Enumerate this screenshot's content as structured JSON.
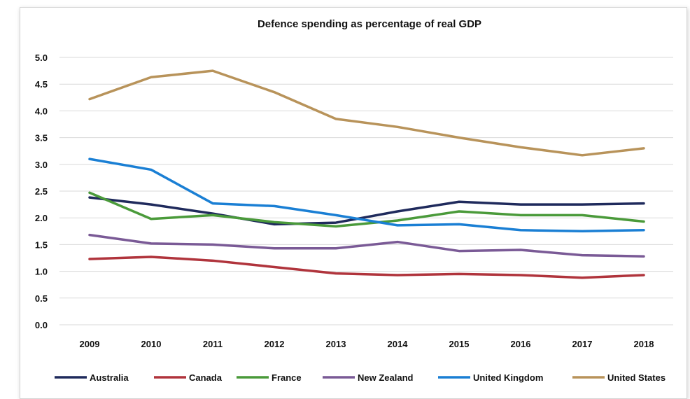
{
  "chart_data": {
    "type": "line",
    "title": "Defence spending as percentage of real GDP",
    "xlabel": "",
    "ylabel": "",
    "categories": [
      "2009",
      "2010",
      "2011",
      "2012",
      "2013",
      "2014",
      "2015",
      "2016",
      "2017",
      "2018"
    ],
    "y_ticks": [
      "0.0",
      "0.5",
      "1.0",
      "1.5",
      "2.0",
      "2.5",
      "3.0",
      "3.5",
      "4.0",
      "4.5",
      "5.0"
    ],
    "ylim": [
      0,
      5
    ],
    "grid": true,
    "legend_position": "bottom",
    "series": [
      {
        "name": "Australia",
        "color": "#1f2a5c",
        "values": [
          2.38,
          2.25,
          2.08,
          1.88,
          1.91,
          2.12,
          2.3,
          2.25,
          2.25,
          2.27
        ]
      },
      {
        "name": "Canada",
        "color": "#b0343c",
        "values": [
          1.23,
          1.27,
          1.2,
          1.08,
          0.96,
          0.93,
          0.95,
          0.93,
          0.88,
          0.93
        ]
      },
      {
        "name": "France",
        "color": "#4a9a3a",
        "values": [
          2.47,
          1.98,
          2.05,
          1.92,
          1.84,
          1.95,
          2.12,
          2.05,
          2.05,
          1.93
        ]
      },
      {
        "name": "New Zealand",
        "color": "#7a5a96",
        "values": [
          1.68,
          1.52,
          1.5,
          1.43,
          1.43,
          1.55,
          1.38,
          1.4,
          1.3,
          1.28
        ]
      },
      {
        "name": "United Kingdom",
        "color": "#1a7fd4",
        "values": [
          3.1,
          2.9,
          2.27,
          2.22,
          2.05,
          1.86,
          1.88,
          1.77,
          1.75,
          1.77
        ]
      },
      {
        "name": "United States",
        "color": "#b8935a",
        "values": [
          4.22,
          4.63,
          4.75,
          4.35,
          3.85,
          3.7,
          3.5,
          3.32,
          3.17,
          3.3
        ]
      }
    ]
  }
}
